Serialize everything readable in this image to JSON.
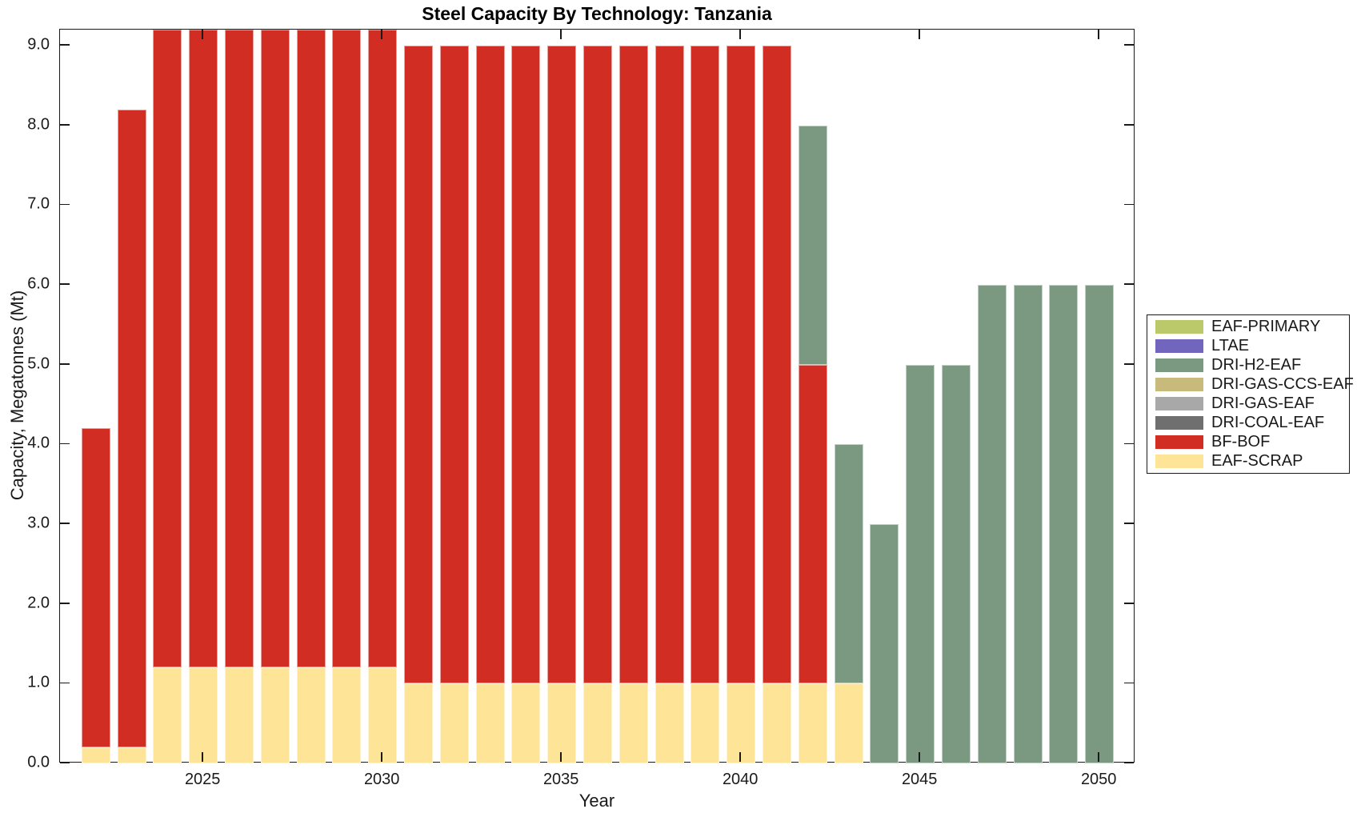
{
  "chart_data": {
    "type": "bar",
    "stacked": true,
    "title": "Steel Capacity By Technology: Tanzania",
    "xlabel": "Year",
    "ylabel": "Capacity, Megatonnes (Mt)",
    "xlim": [
      2021,
      2051
    ],
    "ylim": [
      0,
      9.2
    ],
    "grid": false,
    "legend_position": "outside-right",
    "bar_width_fraction": 0.8,
    "ytick_values": [
      0,
      1,
      2,
      3,
      4,
      5,
      6,
      7,
      8,
      9
    ],
    "ytick_labels": [
      "0.0",
      "1.0",
      "2.0",
      "3.0",
      "4.0",
      "5.0",
      "6.0",
      "7.0",
      "8.0",
      "9.0"
    ],
    "xtick_values": [
      2025,
      2030,
      2035,
      2040,
      2045,
      2050
    ],
    "xtick_labels": [
      "2025",
      "2030",
      "2035",
      "2040",
      "2045",
      "2050"
    ],
    "categories": [
      2022,
      2023,
      2024,
      2025,
      2026,
      2027,
      2028,
      2029,
      2030,
      2031,
      2032,
      2033,
      2034,
      2035,
      2036,
      2037,
      2038,
      2039,
      2040,
      2041,
      2042,
      2043,
      2044,
      2045,
      2046,
      2047,
      2048,
      2049,
      2050
    ],
    "series": [
      {
        "name": "EAF-PRIMARY",
        "color": "#bcc96a",
        "values": [
          0,
          0,
          0,
          0,
          0,
          0,
          0,
          0,
          0,
          0,
          0,
          0,
          0,
          0,
          0,
          0,
          0,
          0,
          0,
          0,
          0,
          0,
          0,
          0,
          0,
          0,
          0,
          0,
          0
        ]
      },
      {
        "name": "LTAE",
        "color": "#7265bd",
        "values": [
          0,
          0,
          0,
          0,
          0,
          0,
          0,
          0,
          0,
          0,
          0,
          0,
          0,
          0,
          0,
          0,
          0,
          0,
          0,
          0,
          0,
          0,
          0,
          0,
          0,
          0,
          0,
          0,
          0
        ]
      },
      {
        "name": "DRI-H2-EAF",
        "color": "#7a9980",
        "values": [
          0,
          0,
          0,
          0,
          0,
          0,
          0,
          0,
          0,
          0,
          0,
          0,
          0,
          0,
          0,
          0,
          0,
          0,
          0,
          0,
          3,
          3,
          3,
          5,
          5,
          6,
          6,
          6,
          6
        ]
      },
      {
        "name": "DRI-GAS-CCS-EAF",
        "color": "#c8ba7b",
        "values": [
          0,
          0,
          0,
          0,
          0,
          0,
          0,
          0,
          0,
          0,
          0,
          0,
          0,
          0,
          0,
          0,
          0,
          0,
          0,
          0,
          0,
          0,
          0,
          0,
          0,
          0,
          0,
          0,
          0
        ]
      },
      {
        "name": "DRI-GAS-EAF",
        "color": "#a8a8a8",
        "values": [
          0,
          0,
          0,
          0,
          0,
          0,
          0,
          0,
          0,
          0,
          0,
          0,
          0,
          0,
          0,
          0,
          0,
          0,
          0,
          0,
          0,
          0,
          0,
          0,
          0,
          0,
          0,
          0,
          0
        ]
      },
      {
        "name": "DRI-COAL-EAF",
        "color": "#6f6f6f",
        "values": [
          0,
          0,
          0,
          0,
          0,
          0,
          0,
          0,
          0,
          0,
          0,
          0,
          0,
          0,
          0,
          0,
          0,
          0,
          0,
          0,
          0,
          0,
          0,
          0,
          0,
          0,
          0,
          0,
          0
        ]
      },
      {
        "name": "BF-BOF",
        "color": "#d22d23",
        "values": [
          4,
          8,
          8,
          8,
          8,
          8,
          8,
          8,
          8,
          8,
          8,
          8,
          8,
          8,
          8,
          8,
          8,
          8,
          8,
          8,
          4,
          0,
          0,
          0,
          0,
          0,
          0,
          0,
          0
        ]
      },
      {
        "name": "EAF-SCRAP",
        "color": "#fee496",
        "values": [
          0.2,
          0.2,
          1.2,
          1.2,
          1.2,
          1.2,
          1.2,
          1.2,
          1.2,
          1,
          1,
          1,
          1,
          1,
          1,
          1,
          1,
          1,
          1,
          1,
          1,
          1,
          0,
          0,
          0,
          0,
          0,
          0,
          0
        ]
      }
    ],
    "stack_order_note": "bars stack bottom-to-top in reverse legend order (EAF-SCRAP bottom, then BF-BOF, then DRI-H2-EAF)"
  }
}
